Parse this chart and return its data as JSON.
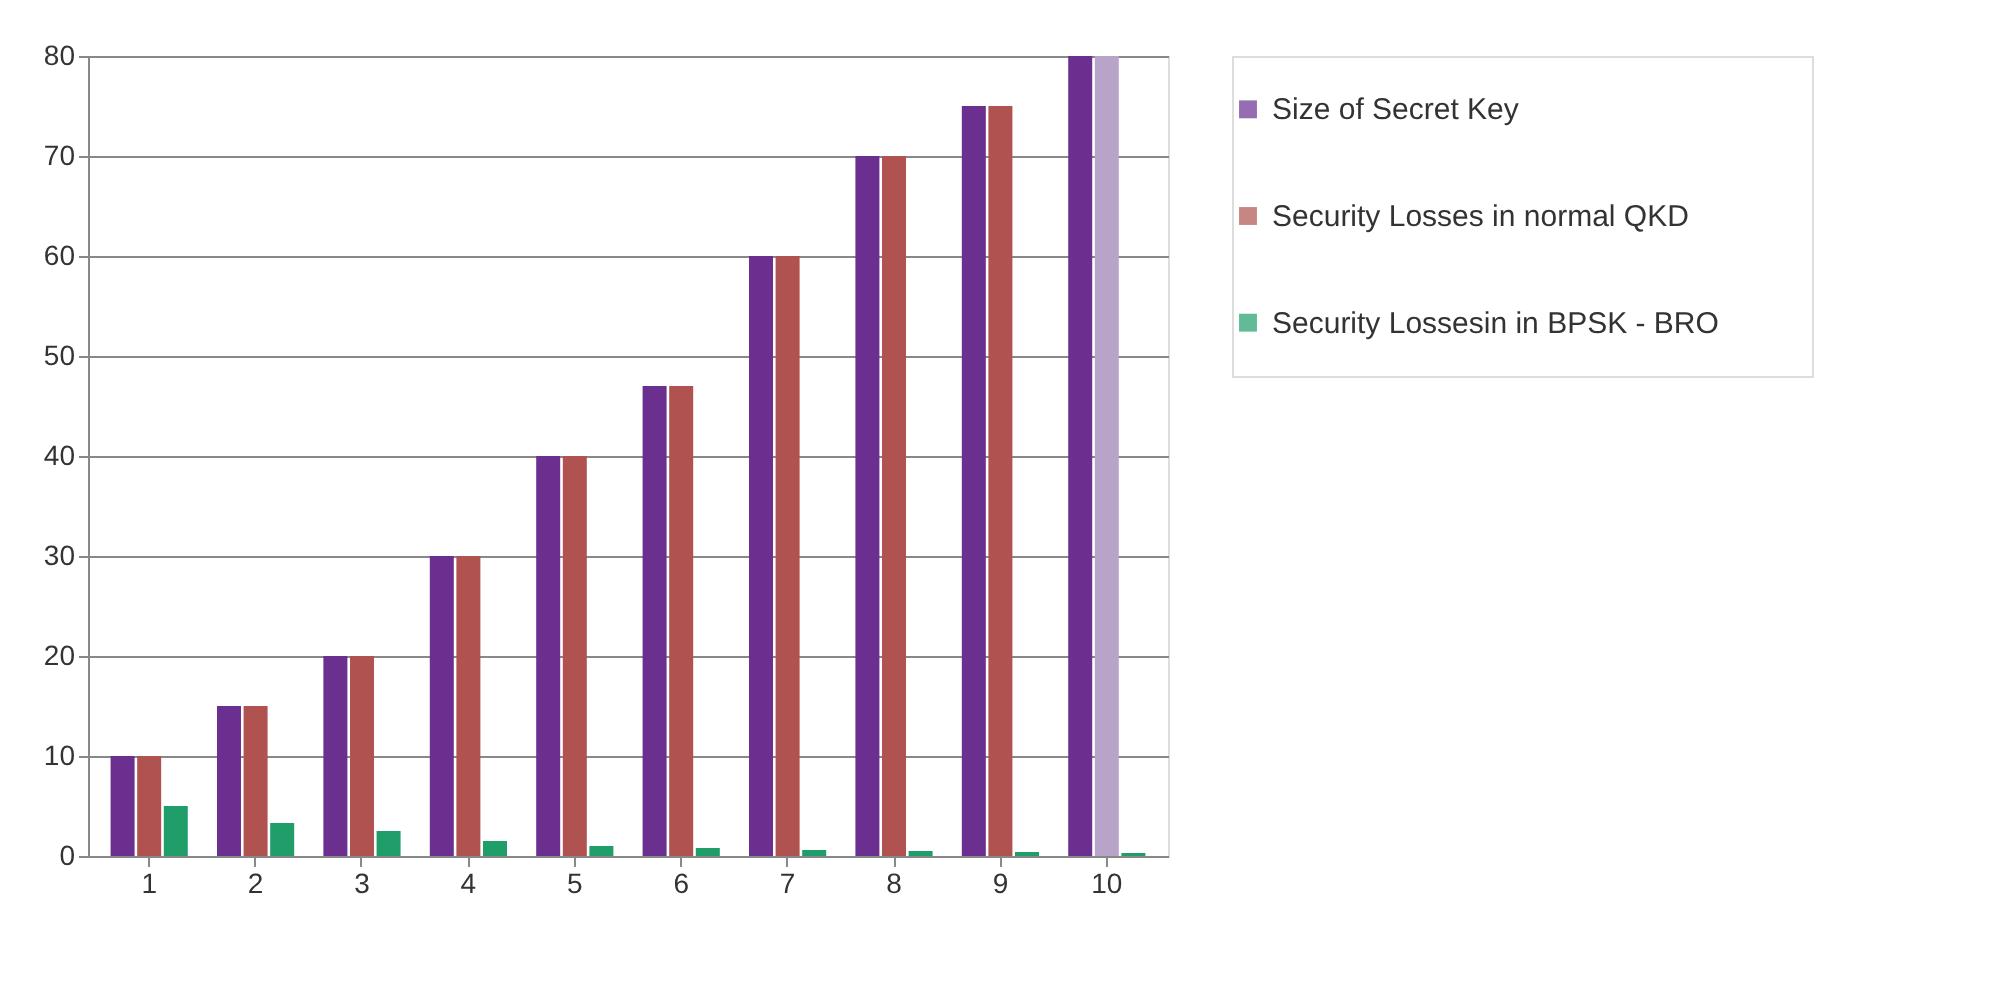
{
  "chart_data": {
    "type": "bar",
    "categories": [
      "1",
      "2",
      "3",
      "4",
      "5",
      "6",
      "7",
      "8",
      "9",
      "10"
    ],
    "series": [
      {
        "name": "Size of Secret Key",
        "color": "#6a2f8f",
        "values": [
          10,
          15,
          20,
          30,
          40,
          47,
          60,
          70,
          75,
          80
        ]
      },
      {
        "name": "Security Losses in normal QKD",
        "color": "#b0524f",
        "colors": [
          "#b0524f",
          "#b0524f",
          "#b0524f",
          "#b0524f",
          "#b0524f",
          "#b0524f",
          "#b0524f",
          "#b0524f",
          "#b0524f",
          "#b8a3c9"
        ],
        "values": [
          10,
          15,
          20,
          30,
          40,
          47,
          60,
          70,
          75,
          80
        ]
      },
      {
        "name": "Security Lossesin in BPSK - BRO",
        "color": "#1f9e6a",
        "values": [
          5,
          3.3,
          2.5,
          1.5,
          1.0,
          0.8,
          0.6,
          0.5,
          0.4,
          0.3
        ]
      }
    ],
    "ylim": [
      0,
      80
    ],
    "yticks": [
      0,
      10,
      20,
      30,
      40,
      50,
      60,
      70,
      80
    ],
    "grid": "y",
    "legend": "right"
  }
}
